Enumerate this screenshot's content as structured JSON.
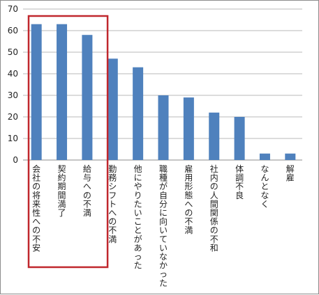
{
  "chart_data": {
    "type": "bar",
    "title": "",
    "xlabel": "",
    "ylabel": "",
    "ylim": [
      0,
      70
    ],
    "yticks": [
      0,
      10,
      20,
      30,
      40,
      50,
      60,
      70
    ],
    "grid": true,
    "bar_color": "#4f81bd",
    "highlight_color": "#c0272d",
    "highlight_categories": [
      0,
      1,
      2
    ],
    "categories": [
      "会社の将来性への不安",
      "契約期間満了",
      "給与への不満",
      "勤務シフトへの不満",
      "他にやりたいことがあった",
      "職種が自分に向いていなかった",
      "雇用形態への不満",
      "社内の人間関係の不和",
      "体調不良",
      "なんとなく",
      "解雇"
    ],
    "values": [
      63,
      63,
      58,
      47,
      43,
      30,
      29,
      22,
      20,
      3,
      3
    ]
  }
}
